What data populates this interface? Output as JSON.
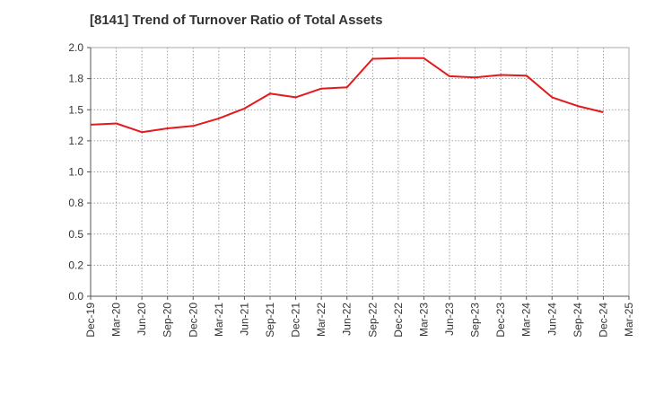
{
  "chart_data": {
    "type": "line",
    "title": "[8141]  Trend of Turnover Ratio of Total Assets",
    "xlabel": "",
    "ylabel": "",
    "x": [
      "Dec-19",
      "Mar-20",
      "Jun-20",
      "Sep-20",
      "Dec-20",
      "Mar-21",
      "Jun-21",
      "Sep-21",
      "Dec-21",
      "Mar-22",
      "Jun-22",
      "Sep-22",
      "Dec-22",
      "Mar-23",
      "Jun-23",
      "Sep-23",
      "Dec-23",
      "Mar-24",
      "Jun-24",
      "Sep-24",
      "Dec-24",
      "Mar-25"
    ],
    "ylim": [
      0.0,
      2.0
    ],
    "yticks": [
      "0.0",
      "0.2",
      "0.5",
      "0.8",
      "1.0",
      "1.2",
      "1.5",
      "1.8",
      "2.0"
    ],
    "ytick_values": [
      0.0,
      0.25,
      0.5,
      0.75,
      1.0,
      1.25,
      1.5,
      1.75,
      2.0
    ],
    "grid": true,
    "series": [
      {
        "name": "",
        "color": "#e31a1c",
        "values": [
          1.38,
          1.39,
          1.32,
          1.35,
          1.37,
          1.43,
          1.51,
          1.63,
          1.6,
          1.67,
          1.68,
          1.91,
          1.915,
          1.915,
          1.77,
          1.76,
          1.78,
          1.775,
          1.6,
          1.53,
          1.48,
          null
        ]
      }
    ]
  }
}
